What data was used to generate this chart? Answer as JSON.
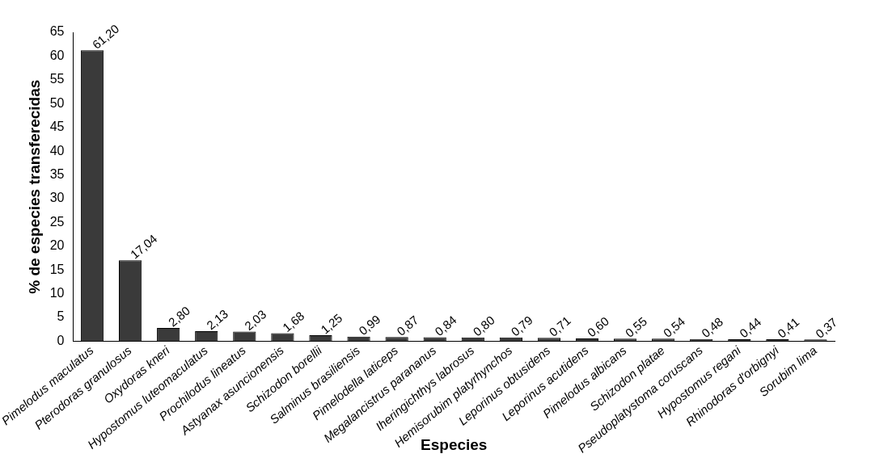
{
  "chart_data": {
    "type": "bar",
    "xlabel": "Especies",
    "ylabel": "% de especies transferecidas",
    "categories": [
      "Pimelodus maculatus",
      "Pterodoras granulosus",
      "Oxydoras kneri",
      "Hypostomus luteomaculatus",
      "Prochilodus lineatus",
      "Astyanax asuncionensis",
      "Schizodon borellii",
      "Salminus brasiliensis",
      "Pimelodella laticeps",
      "Megalancistrus parananus",
      "Iheringichthys labrosus",
      "Hemisorubim platyrhynchos",
      "Leporinus obtusidens",
      "Leporinus acutidens",
      "Pimelodus albicans",
      "Schizodon platae",
      "Pseudoplatystoma coruscans",
      "Hypostomus regani",
      "Rhinodoras d'orbignyi",
      "Sorubim lima"
    ],
    "values": [
      61.2,
      17.04,
      2.8,
      2.13,
      2.03,
      1.68,
      1.25,
      0.99,
      0.87,
      0.84,
      0.8,
      0.79,
      0.71,
      0.6,
      0.55,
      0.54,
      0.48,
      0.44,
      0.41,
      0.37
    ],
    "value_labels": [
      "61,20",
      "17,04",
      "2,80",
      "2,13",
      "2,03",
      "1,68",
      "1,25",
      "0,99",
      "0,87",
      "0,84",
      "0,80",
      "0,79",
      "0,71",
      "0,60",
      "0,55",
      "0,54",
      "0,48",
      "0,44",
      "0,41",
      "0,37"
    ],
    "color": "#3a3a3a",
    "ylim": [
      0,
      65
    ],
    "yticks": [
      0,
      5,
      10,
      15,
      20,
      25,
      30,
      35,
      40,
      45,
      50,
      55,
      60,
      65
    ],
    "grid": false,
    "legend": false
  }
}
